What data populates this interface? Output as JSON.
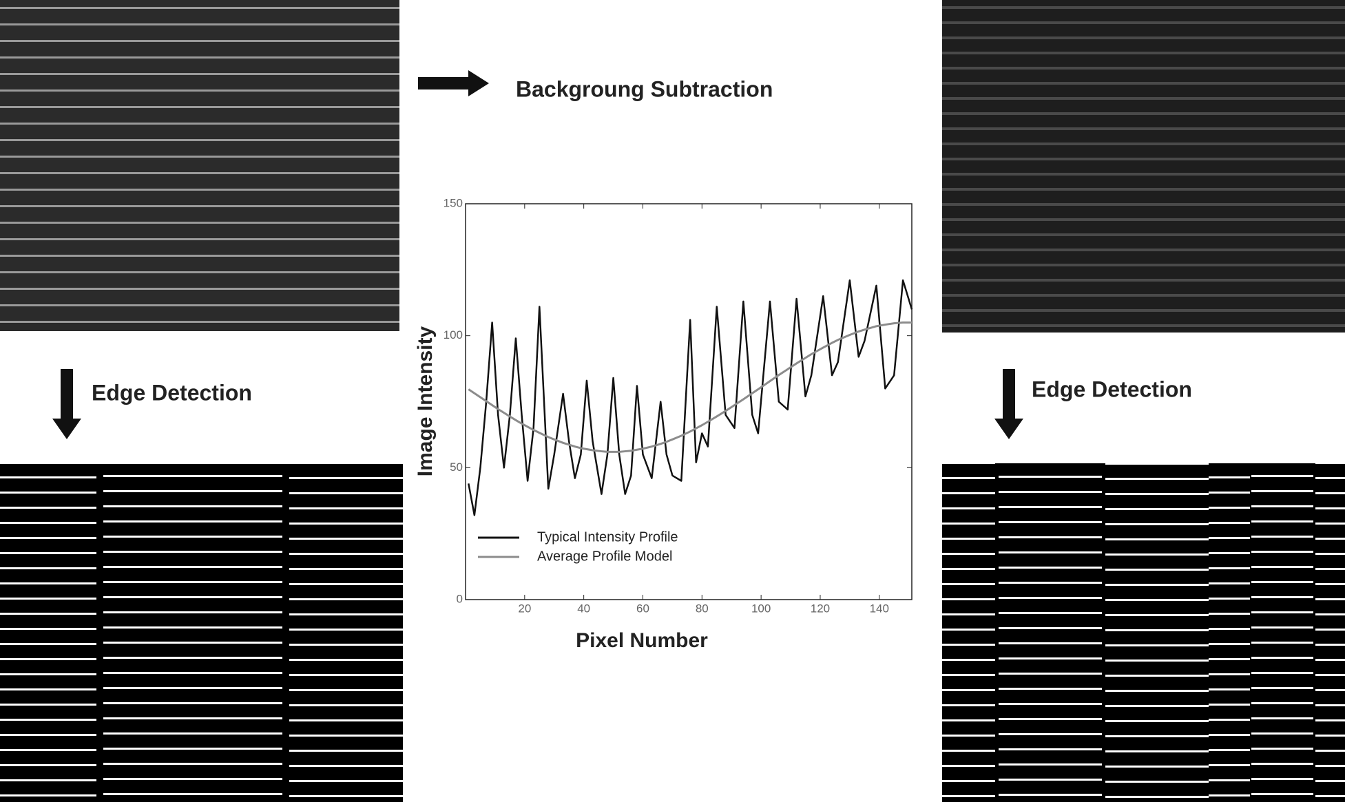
{
  "chart_data": {
    "type": "line",
    "x_label": "Pixel Number",
    "y_label": "Image Intensity",
    "x": [
      1,
      3,
      5,
      7,
      9,
      11,
      13,
      15,
      17,
      19,
      21,
      23,
      25,
      28,
      30,
      33,
      35,
      37,
      39,
      41,
      43,
      46,
      48,
      50,
      52,
      54,
      56,
      58,
      60,
      63,
      66,
      68,
      70,
      73,
      76,
      78,
      80,
      82,
      85,
      88,
      91,
      94,
      97,
      99,
      103,
      106,
      109,
      112,
      115,
      117,
      121,
      124,
      126,
      130,
      133,
      135,
      139,
      142,
      145,
      148,
      151
    ],
    "series": [
      {
        "name": "Typical Intensity Profile",
        "color": "#111111",
        "values": [
          44,
          32,
          50,
          75,
          105,
          70,
          50,
          70,
          99,
          70,
          45,
          65,
          111,
          42,
          55,
          78,
          60,
          46,
          55,
          83,
          60,
          40,
          55,
          84,
          55,
          40,
          47,
          81,
          55,
          46,
          75,
          55,
          47,
          45,
          106,
          52,
          63,
          58,
          111,
          70,
          65,
          113,
          70,
          63,
          113,
          75,
          72,
          114,
          77,
          85,
          115,
          85,
          90,
          121,
          92,
          98,
          119,
          80,
          85,
          121,
          110
        ]
      },
      {
        "name": "Average Profile Model",
        "color": "#8c8c8c",
        "values": [
          79.7,
          78.2,
          76.7,
          75.2,
          73.7,
          72.2,
          70.8,
          69.4,
          68.0,
          66.7,
          65.5,
          64.3,
          63.2,
          61.6,
          60.7,
          59.4,
          58.7,
          58.0,
          57.4,
          57.0,
          56.6,
          56.2,
          56.0,
          56.0,
          56.0,
          56.2,
          56.4,
          56.8,
          57.2,
          58.0,
          59.0,
          59.8,
          60.7,
          62.1,
          63.7,
          64.9,
          66.1,
          67.4,
          69.4,
          71.5,
          73.7,
          75.9,
          78.2,
          79.7,
          82.8,
          85.1,
          87.3,
          89.5,
          91.6,
          93.0,
          95.5,
          97.3,
          98.4,
          100.3,
          101.6,
          102.3,
          103.6,
          104.2,
          104.7,
          105.0,
          105.0
        ]
      }
    ],
    "xlim": [
      0,
      151
    ],
    "ylim": [
      0,
      150
    ],
    "xticks": [
      20,
      40,
      60,
      80,
      100,
      120,
      140
    ],
    "yticks": [
      0,
      50,
      100,
      150
    ],
    "grid": false,
    "legend": "lower left"
  },
  "labels": {
    "top_arrow": "Backgroung Subtraction",
    "left_arrow": "Edge Detection",
    "right_arrow": "Edge Detection"
  }
}
